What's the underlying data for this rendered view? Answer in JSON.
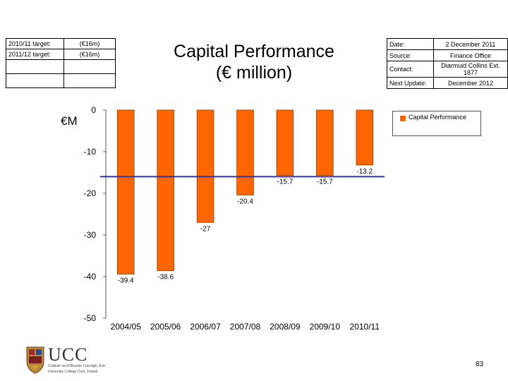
{
  "targets": {
    "rows": [
      {
        "label": "2010/11 target:",
        "value": "(€16m)"
      },
      {
        "label": "2011/12 target:",
        "value": "(€16m)"
      }
    ]
  },
  "title": {
    "line1": "Capital Performance",
    "line2": "(€ million)"
  },
  "meta": {
    "date_label": "Date:",
    "date_value": "2 December 2011",
    "source_label": "Source:",
    "source_value": "Finance Office",
    "contact_label": "Contact:",
    "contact_value": "Diarmuid Collins Ext. 1877",
    "next_label": "Next Update:",
    "next_value": "December 2012"
  },
  "y_unit": "€M",
  "colors": {
    "bar": "#ff6600",
    "target_line": "#3333a0",
    "axis": "#555555"
  },
  "chart_data": {
    "type": "bar",
    "categories": [
      "2004/05",
      "2005/06",
      "2006/07",
      "2007/08",
      "2008/09",
      "2009/10",
      "2010/11"
    ],
    "series": [
      {
        "name": "Capital Performance",
        "values": [
          -39.4,
          -38.6,
          -27,
          -20.4,
          -15.7,
          -15.7,
          -13.2
        ]
      }
    ],
    "data_labels": [
      "-39.4",
      "-38.6",
      "-27",
      "-20.4",
      "-15.7",
      "-15.7",
      "-13.2"
    ],
    "target_line": -16,
    "ylim": [
      -50,
      0
    ],
    "yticks": [
      0,
      -10,
      -20,
      -30,
      -40,
      -50
    ],
    "legend": {
      "position": "top-right",
      "label": "Capital Performance"
    },
    "grid": false
  },
  "logo": {
    "name": "UCC",
    "irish": "Coláiste na hOllscoile Corcaigh, Éire",
    "english": "University College Cork, Ireland"
  },
  "page_number": "83"
}
